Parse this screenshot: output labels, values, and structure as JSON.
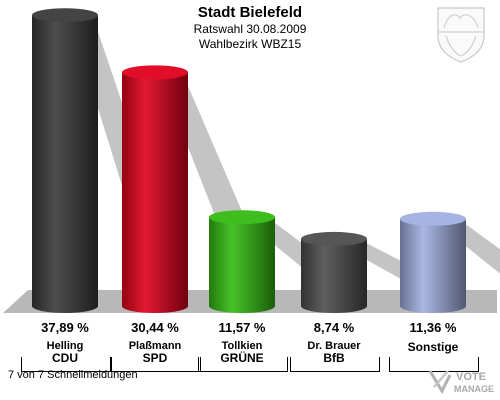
{
  "header": {
    "title": "Stadt Bielefeld",
    "line1": "Ratswahl 30.08.2009",
    "line2": "Wahlbezirk WBZ15"
  },
  "footer": {
    "text": "7 von 7 Schnellmeldungen"
  },
  "logo": {
    "line1": "VOTE",
    "line2": "MANAGER"
  },
  "chart_data": {
    "type": "bar",
    "categories": [
      "CDU",
      "SPD",
      "GRÜNE",
      "BfB",
      "Sonstige"
    ],
    "candidates": [
      "Helling",
      "Plaßmann",
      "Tollkien",
      "Dr. Brauer",
      ""
    ],
    "values": [
      37.89,
      30.44,
      11.57,
      8.74,
      11.36
    ],
    "value_labels": [
      "37,89 %",
      "30,44 %",
      "11,57 %",
      "8,74 %",
      "11,36 %"
    ],
    "colors": [
      "#3a3a3a",
      "#e0001b",
      "#33bb11",
      "#4d4d4d",
      "#a0b0e0"
    ],
    "ylim": [
      0,
      40
    ],
    "grid": false
  }
}
